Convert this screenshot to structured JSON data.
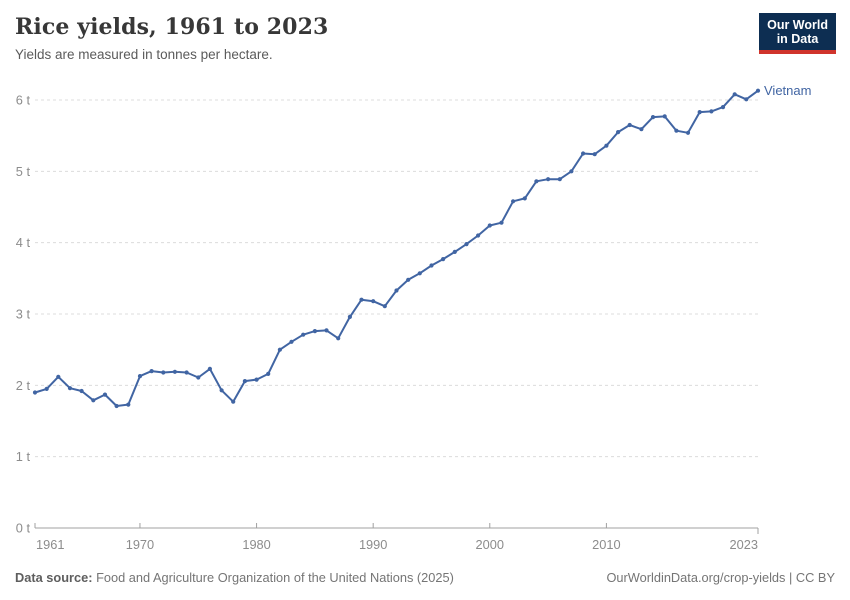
{
  "header": {
    "title": "Rice yields, 1961 to 2023",
    "subtitle": "Yields are measured in tonnes per hectare."
  },
  "logo": {
    "line1": "Our World",
    "line2": "in Data",
    "bg_color": "#0d2e52",
    "underline_color": "#d0342c"
  },
  "chart_data": {
    "type": "line",
    "title": "Rice yields, 1961 to 2023",
    "subtitle": "Yields are measured in tonnes per hectare.",
    "ylabel": "tonnes per hectare",
    "xlabel": "",
    "unit": "t",
    "xlim": [
      1961,
      2023
    ],
    "ylim": [
      0,
      6
    ],
    "grid": "horizontal-dashed",
    "legend_position": "end-of-line-label",
    "x_ticks": [
      1961,
      1970,
      1980,
      1990,
      2000,
      2010,
      2023
    ],
    "y_ticks": [
      0,
      1,
      2,
      3,
      4,
      5,
      6
    ],
    "y_tick_labels": [
      "0 t",
      "1 t",
      "2 t",
      "3 t",
      "4 t",
      "5 t",
      "6 t"
    ],
    "x": [
      1961,
      1962,
      1963,
      1964,
      1965,
      1966,
      1967,
      1968,
      1969,
      1970,
      1971,
      1972,
      1973,
      1974,
      1975,
      1976,
      1977,
      1978,
      1979,
      1980,
      1981,
      1982,
      1983,
      1984,
      1985,
      1986,
      1987,
      1988,
      1989,
      1990,
      1991,
      1992,
      1993,
      1994,
      1995,
      1996,
      1997,
      1998,
      1999,
      2000,
      2001,
      2002,
      2003,
      2004,
      2005,
      2006,
      2007,
      2008,
      2009,
      2010,
      2011,
      2012,
      2013,
      2014,
      2015,
      2016,
      2017,
      2018,
      2019,
      2020,
      2021,
      2022,
      2023
    ],
    "series": [
      {
        "name": "Vietnam",
        "color": "#4165a3",
        "values": [
          1.9,
          1.95,
          2.12,
          1.96,
          1.92,
          1.79,
          1.87,
          1.71,
          1.73,
          2.13,
          2.2,
          2.18,
          2.19,
          2.18,
          2.11,
          2.23,
          1.93,
          1.77,
          2.06,
          2.08,
          2.16,
          2.5,
          2.61,
          2.71,
          2.76,
          2.77,
          2.66,
          2.96,
          3.2,
          3.18,
          3.11,
          3.33,
          3.48,
          3.57,
          3.68,
          3.77,
          3.87,
          3.98,
          4.1,
          4.24,
          4.28,
          4.58,
          4.62,
          4.86,
          4.89,
          4.89,
          5.0,
          5.25,
          5.24,
          5.36,
          5.55,
          5.65,
          5.59,
          5.76,
          5.77,
          5.57,
          5.54,
          5.83,
          5.84,
          5.9,
          6.08,
          6.01,
          6.13
        ]
      }
    ],
    "colors": {
      "grid": "#dcdcdc",
      "axis": "#a0a0a0",
      "tick_text": "#8c8c8c"
    }
  },
  "footer": {
    "source_label": "Data source:",
    "source_text": " Food and Agriculture Organization of the United Nations (2025)",
    "link": "OurWorldinData.org/crop-yields",
    "separator": " | ",
    "license": "CC BY"
  }
}
